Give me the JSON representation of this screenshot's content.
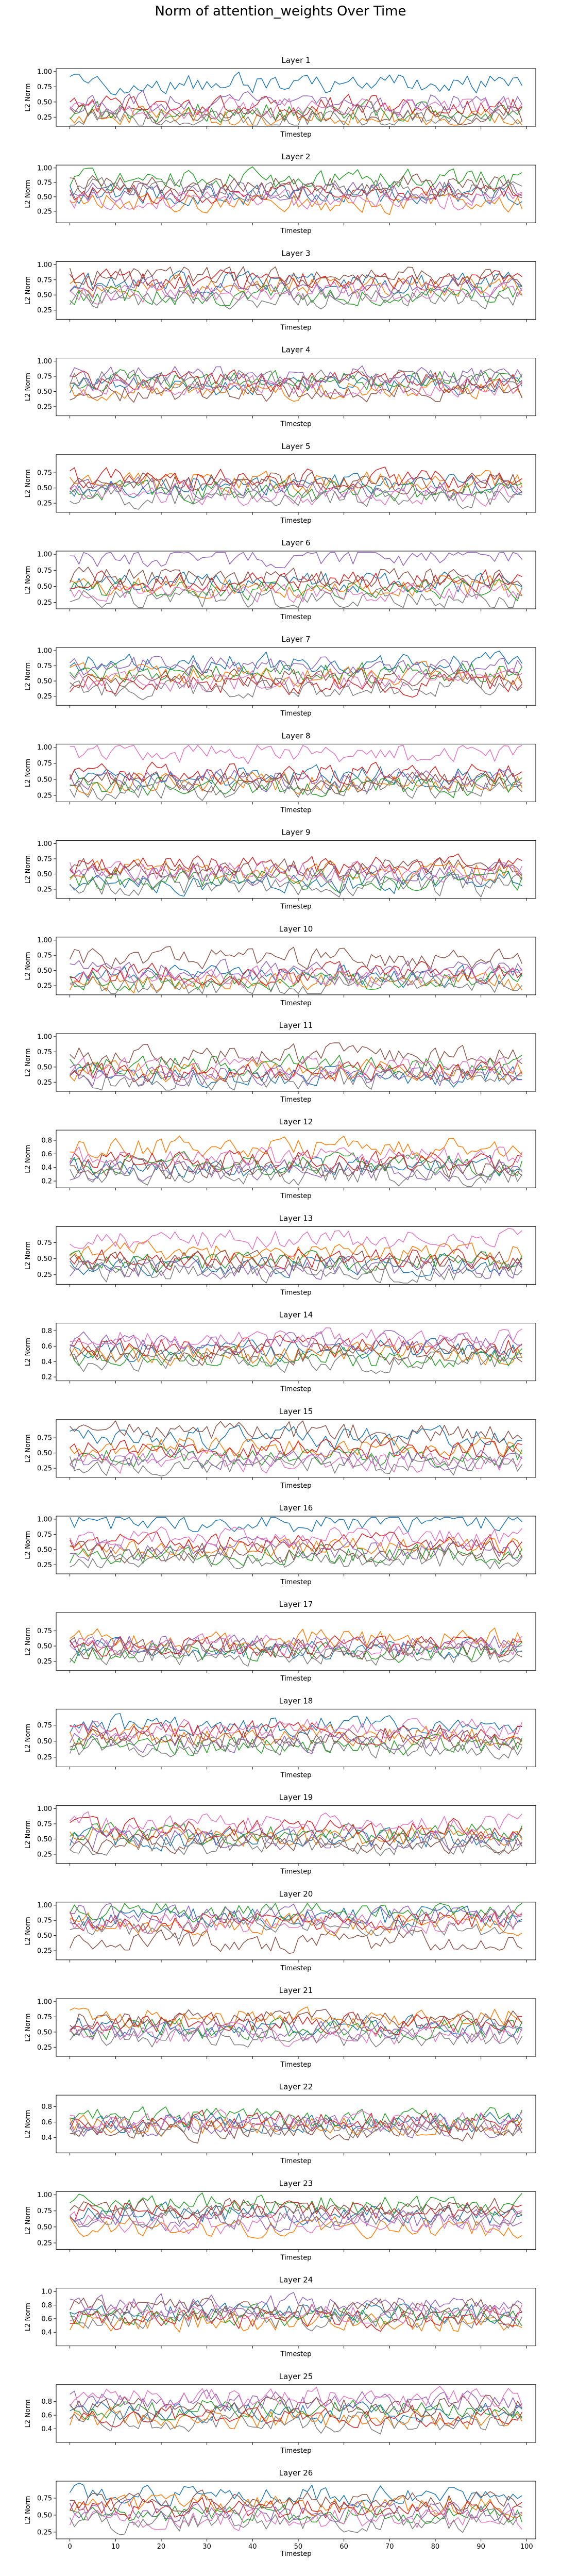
{
  "title": "Norm of attention_weights Over Time",
  "colors": [
    "#1f77b4",
    "#ff7f0e",
    "#2ca02c",
    "#d62728",
    "#9467bd",
    "#8c564b",
    "#e377c2",
    "#7f7f7f"
  ],
  "chart_data": {
    "type": "line",
    "subplot_count": 26,
    "series_per_subplot": 8,
    "points_per_series": 100,
    "xlabel": "Timestep",
    "ylabel": "L2 Norm",
    "xlim": [
      -3,
      102
    ],
    "x_ticks": [
      0,
      10,
      20,
      30,
      40,
      50,
      60,
      70,
      80,
      90,
      100
    ],
    "grid": false,
    "legend": "none",
    "subplots": [
      {
        "title": "Layer 1",
        "ylim": [
          0.1,
          1.05
        ],
        "y_ticks": [
          0.25,
          0.5,
          0.75,
          1.0
        ],
        "y_tick_labels": [
          "0.25",
          "0.50",
          "0.75",
          "1.00"
        ],
        "series_levels": [
          0.8,
          0.25,
          0.35,
          0.45,
          0.5,
          0.3,
          0.4,
          0.2
        ]
      },
      {
        "title": "Layer 2",
        "ylim": [
          0.05,
          1.05
        ],
        "y_ticks": [
          0.25,
          0.5,
          0.75,
          1.0
        ],
        "y_tick_labels": [
          "0.25",
          "0.50",
          "0.75",
          "1.00"
        ],
        "series_levels": [
          0.55,
          0.4,
          0.8,
          0.55,
          0.6,
          0.7,
          0.45,
          0.65
        ]
      },
      {
        "title": "Layer 3",
        "ylim": [
          0.1,
          1.05
        ],
        "y_ticks": [
          0.25,
          0.5,
          0.75,
          1.0
        ],
        "y_tick_labels": [
          "0.25",
          "0.50",
          "0.75",
          "1.00"
        ],
        "series_levels": [
          0.7,
          0.65,
          0.5,
          0.75,
          0.6,
          0.8,
          0.55,
          0.45
        ]
      },
      {
        "title": "Layer 4",
        "ylim": [
          0.1,
          1.05
        ],
        "y_ticks": [
          0.25,
          0.5,
          0.75,
          1.0
        ],
        "y_tick_labels": [
          "0.25",
          "0.50",
          "0.75",
          "1.00"
        ],
        "series_levels": [
          0.6,
          0.55,
          0.7,
          0.65,
          0.75,
          0.5,
          0.6,
          0.7
        ]
      },
      {
        "title": "Layer 5",
        "ylim": [
          0.1,
          1.05
        ],
        "y_ticks": [
          0.25,
          0.5,
          0.75
        ],
        "y_tick_labels": [
          "0.25",
          "0.50",
          "0.75"
        ],
        "series_levels": [
          0.55,
          0.6,
          0.45,
          0.65,
          0.5,
          0.6,
          0.4,
          0.35
        ]
      },
      {
        "title": "Layer 6",
        "ylim": [
          0.15,
          1.05
        ],
        "y_ticks": [
          0.25,
          0.5,
          0.75,
          1.0
        ],
        "y_tick_labels": [
          "0.25",
          "0.50",
          "0.75",
          "1.00"
        ],
        "series_levels": [
          0.55,
          0.5,
          0.45,
          0.6,
          0.95,
          0.65,
          0.4,
          0.3
        ]
      },
      {
        "title": "Layer 7",
        "ylim": [
          0.1,
          1.05
        ],
        "y_ticks": [
          0.25,
          0.5,
          0.75,
          1.0
        ],
        "y_tick_labels": [
          "0.25",
          "0.50",
          "0.75",
          "1.00"
        ],
        "series_levels": [
          0.8,
          0.6,
          0.65,
          0.45,
          0.75,
          0.55,
          0.5,
          0.4
        ]
      },
      {
        "title": "Layer 8",
        "ylim": [
          0.15,
          1.05
        ],
        "y_ticks": [
          0.25,
          0.5,
          0.75,
          1.0
        ],
        "y_tick_labels": [
          "0.25",
          "0.50",
          "0.75",
          "1.00"
        ],
        "series_levels": [
          0.55,
          0.45,
          0.4,
          0.6,
          0.5,
          0.45,
          0.9,
          0.35
        ]
      },
      {
        "title": "Layer 9",
        "ylim": [
          0.1,
          1.05
        ],
        "y_ticks": [
          0.25,
          0.5,
          0.75,
          1.0
        ],
        "y_tick_labels": [
          "0.25",
          "0.50",
          "0.75",
          "1.00"
        ],
        "series_levels": [
          0.35,
          0.55,
          0.4,
          0.65,
          0.5,
          0.6,
          0.55,
          0.3
        ]
      },
      {
        "title": "Layer 10",
        "ylim": [
          0.1,
          1.05
        ],
        "y_ticks": [
          0.25,
          0.5,
          0.75,
          1.0
        ],
        "y_tick_labels": [
          "0.25",
          "0.50",
          "0.75",
          "1.00"
        ],
        "series_levels": [
          0.4,
          0.3,
          0.35,
          0.45,
          0.5,
          0.7,
          0.4,
          0.25
        ]
      },
      {
        "title": "Layer 11",
        "ylim": [
          0.1,
          1.05
        ],
        "y_ticks": [
          0.25,
          0.5,
          0.75,
          1.0
        ],
        "y_tick_labels": [
          "0.25",
          "0.50",
          "0.75",
          "1.00"
        ],
        "series_levels": [
          0.35,
          0.45,
          0.55,
          0.4,
          0.35,
          0.7,
          0.5,
          0.3
        ]
      },
      {
        "title": "Layer 12",
        "ylim": [
          0.1,
          0.95
        ],
        "y_ticks": [
          0.2,
          0.4,
          0.6,
          0.8
        ],
        "y_tick_labels": [
          "0.2",
          "0.4",
          "0.6",
          "0.8"
        ],
        "series_levels": [
          0.4,
          0.7,
          0.45,
          0.5,
          0.35,
          0.4,
          0.55,
          0.3
        ]
      },
      {
        "title": "Layer 13",
        "ylim": [
          0.1,
          1.0
        ],
        "y_ticks": [
          0.25,
          0.5,
          0.75
        ],
        "y_tick_labels": [
          "0.25",
          "0.50",
          "0.75"
        ],
        "series_levels": [
          0.4,
          0.6,
          0.45,
          0.5,
          0.35,
          0.45,
          0.8,
          0.3
        ]
      },
      {
        "title": "Layer 14",
        "ylim": [
          0.15,
          0.9
        ],
        "y_ticks": [
          0.2,
          0.4,
          0.6,
          0.8
        ],
        "y_tick_labels": [
          "0.2",
          "0.4",
          "0.6",
          "0.8"
        ],
        "series_levels": [
          0.55,
          0.5,
          0.45,
          0.6,
          0.65,
          0.5,
          0.7,
          0.4
        ]
      },
      {
        "title": "Layer 15",
        "ylim": [
          0.1,
          1.05
        ],
        "y_ticks": [
          0.25,
          0.5,
          0.75
        ],
        "y_tick_labels": [
          "0.25",
          "0.50",
          "0.75"
        ],
        "series_levels": [
          0.75,
          0.6,
          0.45,
          0.55,
          0.4,
          0.85,
          0.35,
          0.3
        ]
      },
      {
        "title": "Layer 16",
        "ylim": [
          0.1,
          1.05
        ],
        "y_ticks": [
          0.25,
          0.5,
          0.75,
          1.0
        ],
        "y_tick_labels": [
          "0.25",
          "0.50",
          "0.75",
          "1.00"
        ],
        "series_levels": [
          0.95,
          0.55,
          0.4,
          0.6,
          0.5,
          0.45,
          0.7,
          0.35
        ]
      },
      {
        "title": "Layer 17",
        "ylim": [
          0.1,
          1.05
        ],
        "y_ticks": [
          0.25,
          0.5,
          0.75
        ],
        "y_tick_labels": [
          "0.25",
          "0.50",
          "0.75"
        ],
        "series_levels": [
          0.45,
          0.6,
          0.4,
          0.5,
          0.55,
          0.45,
          0.5,
          0.35
        ]
      },
      {
        "title": "Layer 18",
        "ylim": [
          0.1,
          1.0
        ],
        "y_ticks": [
          0.25,
          0.5,
          0.75
        ],
        "y_tick_labels": [
          "0.25",
          "0.50",
          "0.75"
        ],
        "series_levels": [
          0.75,
          0.6,
          0.45,
          0.65,
          0.5,
          0.55,
          0.7,
          0.4
        ]
      },
      {
        "title": "Layer 19",
        "ylim": [
          0.1,
          1.05
        ],
        "y_ticks": [
          0.25,
          0.5,
          0.75,
          1.0
        ],
        "y_tick_labels": [
          "0.25",
          "0.50",
          "0.75",
          "1.00"
        ],
        "series_levels": [
          0.5,
          0.55,
          0.6,
          0.65,
          0.5,
          0.45,
          0.75,
          0.4
        ]
      },
      {
        "title": "Layer 20",
        "ylim": [
          0.1,
          1.05
        ],
        "y_ticks": [
          0.25,
          0.5,
          0.75,
          1.0
        ],
        "y_tick_labels": [
          "0.25",
          "0.50",
          "0.75",
          "1.00"
        ],
        "series_levels": [
          0.8,
          0.7,
          0.9,
          0.75,
          0.85,
          0.4,
          0.7,
          0.65
        ]
      },
      {
        "title": "Layer 21",
        "ylim": [
          0.1,
          1.05
        ],
        "y_ticks": [
          0.25,
          0.5,
          0.75,
          1.0
        ],
        "y_tick_labels": [
          "0.25",
          "0.50",
          "0.75",
          "1.00"
        ],
        "series_levels": [
          0.6,
          0.75,
          0.55,
          0.65,
          0.5,
          0.7,
          0.45,
          0.4
        ]
      },
      {
        "title": "Layer 22",
        "ylim": [
          0.2,
          0.95
        ],
        "y_ticks": [
          0.4,
          0.6,
          0.8
        ],
        "y_tick_labels": [
          "0.4",
          "0.6",
          "0.8"
        ],
        "series_levels": [
          0.6,
          0.55,
          0.65,
          0.6,
          0.55,
          0.5,
          0.6,
          0.55
        ]
      },
      {
        "title": "Layer 23",
        "ylim": [
          0.15,
          1.05
        ],
        "y_ticks": [
          0.25,
          0.5,
          0.75,
          1.0
        ],
        "y_tick_labels": [
          "0.25",
          "0.50",
          "0.75",
          "1.00"
        ],
        "series_levels": [
          0.7,
          0.5,
          0.85,
          0.75,
          0.6,
          0.8,
          0.55,
          0.65
        ]
      },
      {
        "title": "Layer 24",
        "ylim": [
          0.2,
          1.05
        ],
        "y_ticks": [
          0.4,
          0.6,
          0.8,
          1.0
        ],
        "y_tick_labels": [
          "0.4",
          "0.6",
          "0.8",
          "1.0"
        ],
        "series_levels": [
          0.7,
          0.55,
          0.65,
          0.6,
          0.8,
          0.75,
          0.7,
          0.6
        ]
      },
      {
        "title": "Layer 25",
        "ylim": [
          0.2,
          1.05
        ],
        "y_ticks": [
          0.4,
          0.6,
          0.8
        ],
        "y_tick_labels": [
          "0.4",
          "0.6",
          "0.8"
        ],
        "series_levels": [
          0.65,
          0.55,
          0.7,
          0.6,
          0.8,
          0.75,
          0.85,
          0.5
        ]
      },
      {
        "title": "Layer 26",
        "ylim": [
          0.15,
          1.0
        ],
        "y_ticks": [
          0.25,
          0.5,
          0.75
        ],
        "y_tick_labels": [
          "0.25",
          "0.50",
          "0.75"
        ],
        "series_levels": [
          0.8,
          0.65,
          0.5,
          0.6,
          0.55,
          0.7,
          0.45,
          0.4
        ]
      }
    ]
  }
}
